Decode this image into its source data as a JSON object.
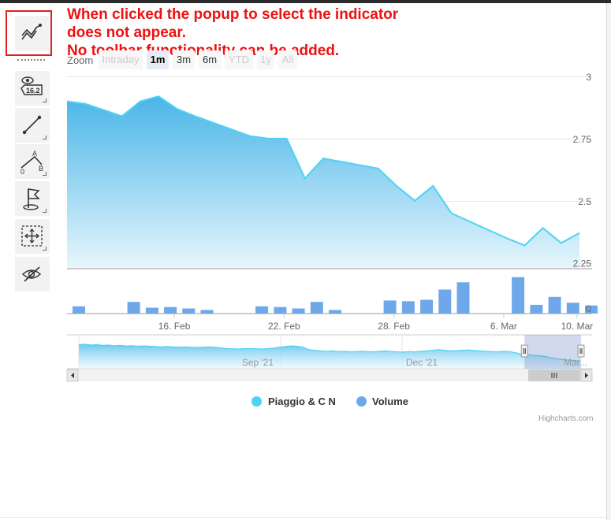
{
  "annotation": {
    "line1": "When clicked the popup to select the indicator",
    "line2": "does not appear.",
    "line3": "No toolbar functionality can be added."
  },
  "toolbar": {
    "items": [
      {
        "name": "indicators",
        "icon": "indicators-icon"
      },
      {
        "name": "label",
        "icon": "label-eye-icon",
        "text": "16.2"
      },
      {
        "name": "line",
        "icon": "line-segment-icon"
      },
      {
        "name": "fibonacci",
        "icon": "fibonacci-icon",
        "labels": [
          "A",
          "0",
          "B"
        ]
      },
      {
        "name": "flag",
        "icon": "flag-icon"
      },
      {
        "name": "zoom-pan",
        "icon": "crosshair-pan-icon"
      },
      {
        "name": "toggle-annotations",
        "icon": "eye-hidden-icon"
      }
    ]
  },
  "range_selector": {
    "label": "Zoom",
    "buttons": [
      {
        "text": "Intraday",
        "state": "disabled"
      },
      {
        "text": "1m",
        "state": "selected"
      },
      {
        "text": "3m",
        "state": "normal"
      },
      {
        "text": "6m",
        "state": "normal"
      },
      {
        "text": "YTD",
        "state": "disabled"
      },
      {
        "text": "1y",
        "state": "disabled"
      },
      {
        "text": "All",
        "state": "disabled"
      }
    ]
  },
  "colors": {
    "price_line": "#4dd3f5",
    "volume": "#6fa8ea",
    "navigator_mask": "rgba(102,133,194,0.3)",
    "annotation": "#ee1111"
  },
  "chart_data": {
    "type": "area",
    "series": [
      {
        "name": "Piaggio & C N",
        "x": [
          "2022-02-11",
          "2022-02-12",
          "2022-02-14",
          "2022-02-15",
          "2022-02-16",
          "2022-02-17",
          "2022-02-18",
          "2022-02-21",
          "2022-02-22",
          "2022-02-23",
          "2022-02-24",
          "2022-02-25",
          "2022-02-28",
          "2022-03-01",
          "2022-03-02",
          "2022-03-03",
          "2022-03-04",
          "2022-03-07",
          "2022-03-08",
          "2022-03-09",
          "2022-03-10",
          "2022-03-11"
        ],
        "values": [
          2.9,
          2.89,
          2.84,
          2.9,
          2.92,
          2.87,
          2.84,
          2.76,
          2.75,
          2.75,
          2.59,
          2.67,
          2.63,
          2.56,
          2.5,
          2.56,
          2.45,
          2.35,
          2.32,
          2.39,
          2.33,
          2.37
        ]
      },
      {
        "name": "Volume",
        "type": "column",
        "x": [
          "2022-02-11",
          "2022-02-14",
          "2022-02-15",
          "2022-02-16",
          "2022-02-17",
          "2022-02-18",
          "2022-02-21",
          "2022-02-22",
          "2022-02-23",
          "2022-02-24",
          "2022-02-25",
          "2022-02-28",
          "2022-03-01",
          "2022-03-02",
          "2022-03-03",
          "2022-03-04",
          "2022-03-07",
          "2022-03-08",
          "2022-03-09",
          "2022-03-10",
          "2022-03-11"
        ],
        "values": [
          1.0,
          1.6,
          0.8,
          0.9,
          0.7,
          0.5,
          1.0,
          0.9,
          0.7,
          1.6,
          0.5,
          1.8,
          1.7,
          1.9,
          3.3,
          4.3,
          5.0,
          1.2,
          2.3,
          1.5,
          1.1
        ]
      }
    ],
    "y_ticks": [
      "3",
      "2.75",
      "2.5",
      "2.25"
    ],
    "y_range": [
      2.23,
      3.0
    ],
    "volume_ticks": [
      "0"
    ],
    "volume_range": [
      0,
      5.2
    ],
    "x_ticks": [
      "16. Feb",
      "22. Feb",
      "28. Feb",
      "6. Mar",
      "10. Mar"
    ],
    "navigator": {
      "labels": [
        "Sep '21",
        "Dec '21",
        "Mar..."
      ],
      "values": [
        0.78,
        0.8,
        0.77,
        0.79,
        0.76,
        0.77,
        0.75,
        0.76,
        0.74,
        0.75,
        0.73,
        0.74,
        0.73,
        0.72,
        0.71,
        0.72,
        0.71,
        0.7,
        0.71,
        0.7,
        0.69,
        0.7,
        0.71,
        0.7,
        0.68,
        0.66,
        0.65,
        0.64,
        0.65,
        0.66,
        0.65,
        0.64,
        0.66,
        0.67,
        0.7,
        0.72,
        0.74,
        0.73,
        0.7,
        0.62,
        0.6,
        0.58,
        0.57,
        0.58,
        0.56,
        0.57,
        0.55,
        0.56,
        0.57,
        0.56,
        0.55,
        0.57,
        0.58,
        0.56,
        0.55,
        0.54,
        0.56,
        0.55,
        0.57,
        0.58,
        0.6,
        0.62,
        0.6,
        0.58,
        0.59,
        0.6,
        0.61,
        0.59,
        0.58,
        0.57,
        0.56,
        0.55,
        0.57,
        0.56,
        0.52,
        0.48,
        0.46,
        0.44,
        0.42,
        0.4,
        0.36,
        0.32,
        0.3,
        0.28,
        0.27,
        0.25
      ],
      "selected_range": [
        0.89,
        1.0
      ]
    },
    "grid": true,
    "legend": "bottom-center",
    "legend_items": [
      "Piaggio & C N",
      "Volume"
    ],
    "credits": "Highcharts.com"
  }
}
